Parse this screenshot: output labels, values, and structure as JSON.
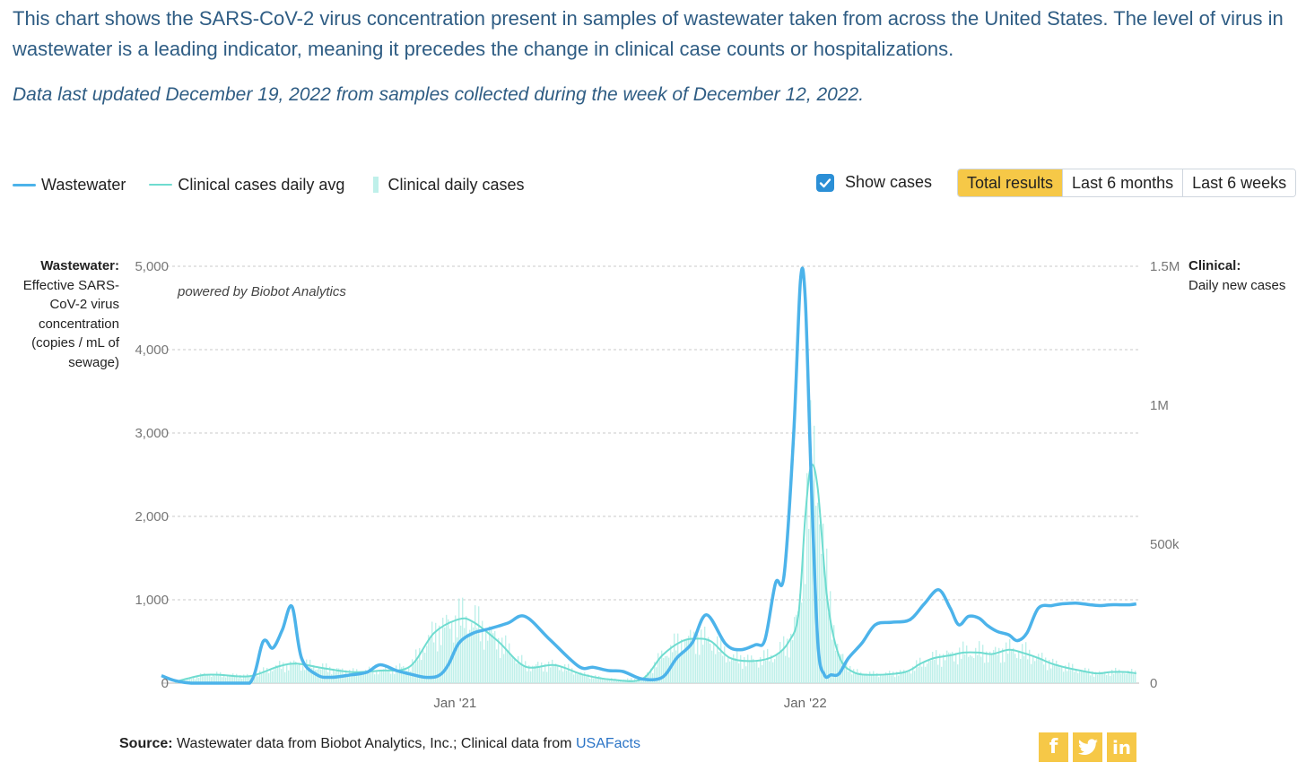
{
  "intro": "This chart shows the SARS-CoV-2 virus concentration present in samples of wastewater taken from across the United States. The level of virus in wastewater is a leading indicator, meaning it precedes the change in clinical case counts or hospitalizations.",
  "updated": "Data last updated December 19, 2022 from samples collected during the week of December 12, 2022.",
  "legend": {
    "wastewater": "Wastewater",
    "avg": "Clinical cases daily avg",
    "daily": "Clinical daily cases"
  },
  "toggle": {
    "label": "Show cases",
    "checked": true
  },
  "range_buttons": [
    "Total results",
    "Last 6 months",
    "Last 6 weeks"
  ],
  "axis_left": {
    "bold": "Wastewater:",
    "text": "Effective SARS-CoV-2 virus concentration (copies / mL of sewage)"
  },
  "axis_right": {
    "bold": "Clinical:",
    "text": "Daily new cases"
  },
  "watermark": "powered by Biobot Analytics",
  "source": {
    "bold": "Source:",
    "text": "Wastewater data from Biobot Analytics, Inc.; Clinical data from",
    "link": "USAFacts"
  },
  "social": [
    "facebook-icon",
    "twitter-icon",
    "linkedin-icon"
  ],
  "colors": {
    "wastewater": "#4cb3ea",
    "avg": "#6fdcd0",
    "daily": "#bff0ea",
    "accent": "#f6c847"
  },
  "chart_data": {
    "type": "line",
    "x_ticks": [
      "Jan '21",
      "Jan '22"
    ],
    "y_left": {
      "ticks": [
        0,
        1000,
        2000,
        3000,
        4000,
        5000
      ],
      "tick_labels": [
        "0",
        "1,000",
        "2,000",
        "3,000",
        "4,000",
        "5,000"
      ],
      "ylim": [
        0,
        5000
      ]
    },
    "y_right": {
      "ticks": [
        0,
        500000,
        1000000,
        1500000
      ],
      "tick_labels": [
        "0",
        "500k",
        "1M",
        "1.5M"
      ],
      "ylim": [
        0,
        1500000
      ]
    },
    "x_range": [
      "2020-03",
      "2022-12"
    ],
    "grid": true,
    "series": [
      {
        "name": "Wastewater",
        "x": [
          "2020-03-01",
          "2020-03-15",
          "2020-04-01",
          "2020-05-01",
          "2020-06-01",
          "2020-06-15",
          "2020-06-25",
          "2020-07-05",
          "2020-07-15",
          "2020-07-25",
          "2020-08-10",
          "2020-08-25",
          "2020-09-15",
          "2020-10-01",
          "2020-10-15",
          "2020-11-01",
          "2020-11-15",
          "2020-12-01",
          "2020-12-15",
          "2020-12-25",
          "2021-01-05",
          "2021-01-20",
          "2021-02-05",
          "2021-02-25",
          "2021-03-15",
          "2021-04-10",
          "2021-05-10",
          "2021-05-25",
          "2021-06-10",
          "2021-06-25",
          "2021-07-15",
          "2021-08-05",
          "2021-08-20",
          "2021-09-05",
          "2021-09-20",
          "2021-10-10",
          "2021-10-25",
          "2021-11-10",
          "2021-11-20",
          "2021-12-01",
          "2021-12-10",
          "2021-12-20",
          "2021-12-27",
          "2022-01-01",
          "2022-01-07",
          "2022-01-14",
          "2022-01-21",
          "2022-01-28",
          "2022-02-05",
          "2022-02-15",
          "2022-03-01",
          "2022-03-15",
          "2022-04-01",
          "2022-04-20",
          "2022-05-05",
          "2022-05-20",
          "2022-06-01",
          "2022-06-10",
          "2022-06-20",
          "2022-07-01",
          "2022-07-10",
          "2022-07-20",
          "2022-08-01",
          "2022-08-10",
          "2022-08-20",
          "2022-09-01",
          "2022-09-15",
          "2022-09-25",
          "2022-10-10",
          "2022-10-25",
          "2022-11-05",
          "2022-11-15",
          "2022-11-25",
          "2022-12-05",
          "2022-12-12"
        ],
        "values": [
          90,
          30,
          0,
          0,
          0,
          500,
          420,
          640,
          920,
          300,
          100,
          70,
          100,
          130,
          220,
          150,
          110,
          70,
          90,
          220,
          480,
          600,
          650,
          720,
          800,
          520,
          200,
          190,
          150,
          140,
          50,
          70,
          300,
          480,
          820,
          470,
          400,
          460,
          520,
          1200,
          1300,
          3000,
          4830,
          4600,
          2500,
          500,
          100,
          100,
          110,
          300,
          480,
          700,
          730,
          760,
          950,
          1120,
          900,
          700,
          800,
          780,
          690,
          620,
          580,
          510,
          600,
          900,
          930,
          950,
          960,
          940,
          930,
          940,
          940,
          940,
          950
        ]
      },
      {
        "name": "Clinical cases daily avg",
        "x": [
          "2020-03-15",
          "2020-04-01",
          "2020-04-15",
          "2020-05-01",
          "2020-06-01",
          "2020-07-01",
          "2020-07-20",
          "2020-08-15",
          "2020-09-15",
          "2020-10-15",
          "2020-11-15",
          "2020-12-10",
          "2021-01-05",
          "2021-01-20",
          "2021-02-15",
          "2021-03-15",
          "2021-04-15",
          "2021-05-15",
          "2021-06-15",
          "2021-07-15",
          "2021-08-05",
          "2021-08-25",
          "2021-09-10",
          "2021-09-25",
          "2021-10-15",
          "2021-11-10",
          "2021-12-01",
          "2021-12-15",
          "2021-12-25",
          "2022-01-01",
          "2022-01-07",
          "2022-01-14",
          "2022-01-24",
          "2022-02-05",
          "2022-02-20",
          "2022-03-15",
          "2022-04-15",
          "2022-05-01",
          "2022-05-15",
          "2022-06-01",
          "2022-06-15",
          "2022-07-01",
          "2022-07-15",
          "2022-08-01",
          "2022-08-15",
          "2022-09-01",
          "2022-09-15",
          "2022-10-01",
          "2022-10-15",
          "2022-11-01",
          "2022-11-15",
          "2022-12-01",
          "2022-12-12"
        ],
        "values": [
          5000,
          20000,
          30000,
          30000,
          25000,
          60000,
          70000,
          55000,
          40000,
          45000,
          60000,
          180000,
          230000,
          220000,
          150000,
          60000,
          65000,
          30000,
          12000,
          15000,
          100000,
          150000,
          160000,
          150000,
          90000,
          80000,
          100000,
          150000,
          250000,
          600000,
          780000,
          700000,
          300000,
          100000,
          40000,
          30000,
          40000,
          70000,
          90000,
          100000,
          110000,
          110000,
          105000,
          120000,
          110000,
          90000,
          70000,
          55000,
          45000,
          35000,
          40000,
          40000,
          35000
        ]
      }
    ]
  }
}
